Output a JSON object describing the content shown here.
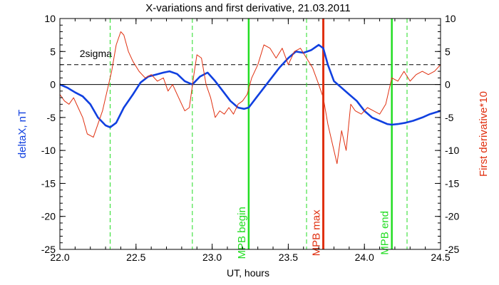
{
  "chart_data": {
    "type": "line",
    "title": "X-variations and first derivative, 21.03.2011",
    "xlabel": "UT, hours",
    "ylabel_left": "deltaX, nT",
    "ylabel_right": "First derivative*10",
    "xlim": [
      22.0,
      24.5
    ],
    "ylim": [
      -25,
      10
    ],
    "x_ticks": [
      "22.0",
      "22.5",
      "23.0",
      "23.5",
      "24.0",
      "24.5"
    ],
    "y_ticks_left": [
      "10",
      "5",
      "0",
      "-5",
      "-10",
      "-15",
      "-20",
      "-25"
    ],
    "y_ticks_right": [
      "10",
      "5",
      "0",
      "-5",
      "-10",
      "-15",
      "-20",
      "-25"
    ],
    "colors": {
      "deltaX": "#1040e0",
      "derivative": "#e03010",
      "mpb_begin_end": "#22dd22",
      "mpb_max": "#e03010",
      "sigma": "#000000"
    },
    "sigma_level": 3,
    "sigma_label": "2sigma",
    "dashed_green_x": [
      22.33,
      22.87,
      23.62,
      24.28
    ],
    "mpb_begin": {
      "x": 23.24,
      "label": "MPB begin"
    },
    "mpb_max": {
      "x": 23.73,
      "label": "MPB max"
    },
    "mpb_end": {
      "x": 24.18,
      "label": "MPB end"
    },
    "series": [
      {
        "name": "deltaX",
        "x": [
          22.0,
          22.05,
          22.1,
          22.15,
          22.2,
          22.25,
          22.3,
          22.33,
          22.37,
          22.42,
          22.48,
          22.53,
          22.58,
          22.63,
          22.68,
          22.72,
          22.77,
          22.82,
          22.87,
          22.92,
          22.97,
          23.02,
          23.07,
          23.12,
          23.17,
          23.21,
          23.24,
          23.29,
          23.34,
          23.39,
          23.44,
          23.5,
          23.55,
          23.6,
          23.65,
          23.7,
          23.73,
          23.76,
          23.8,
          23.85,
          23.9,
          23.95,
          24.0,
          24.05,
          24.1,
          24.15,
          24.18,
          24.22,
          24.27,
          24.32,
          24.38,
          24.43,
          24.5
        ],
        "y": [
          0,
          -0.5,
          -1.2,
          -1.8,
          -3.0,
          -5.0,
          -6.2,
          -6.5,
          -5.8,
          -3.5,
          -1.5,
          0.3,
          1.2,
          1.5,
          1.8,
          2.0,
          1.6,
          0.5,
          0.0,
          1.2,
          1.8,
          0.5,
          -1.0,
          -2.5,
          -3.5,
          -3.7,
          -3.5,
          -2.0,
          -0.5,
          1.0,
          2.5,
          4.0,
          5.0,
          4.8,
          5.2,
          6.0,
          5.5,
          3.0,
          0.5,
          -0.5,
          -1.5,
          -2.5,
          -4.0,
          -5.0,
          -5.5,
          -6.0,
          -6.1,
          -6.0,
          -5.8,
          -5.5,
          -5.0,
          -4.5,
          -4.0
        ]
      },
      {
        "name": "derivative",
        "x": [
          22.0,
          22.03,
          22.06,
          22.09,
          22.12,
          22.15,
          22.18,
          22.22,
          22.25,
          22.28,
          22.31,
          22.34,
          22.37,
          22.4,
          22.42,
          22.45,
          22.48,
          22.52,
          22.56,
          22.6,
          22.64,
          22.68,
          22.71,
          22.74,
          22.78,
          22.82,
          22.85,
          22.88,
          22.9,
          22.93,
          22.96,
          22.99,
          23.02,
          23.05,
          23.08,
          23.11,
          23.14,
          23.17,
          23.2,
          23.23,
          23.26,
          23.3,
          23.34,
          23.38,
          23.42,
          23.46,
          23.5,
          23.54,
          23.58,
          23.62,
          23.66,
          23.7,
          23.73,
          23.76,
          23.79,
          23.82,
          23.85,
          23.88,
          23.91,
          23.94,
          23.98,
          24.02,
          24.06,
          24.1,
          24.14,
          24.18,
          24.22,
          24.26,
          24.3,
          24.34,
          24.38,
          24.42,
          24.46,
          24.5
        ],
        "y": [
          -1.5,
          -2.5,
          -3.0,
          -2.0,
          -3.5,
          -5.0,
          -7.5,
          -8.0,
          -6.0,
          -4.0,
          -1.0,
          2.0,
          6.0,
          8.0,
          7.5,
          5.0,
          3.5,
          2.0,
          1.0,
          1.5,
          0.5,
          1.0,
          -1.0,
          0.0,
          -2.0,
          -4.0,
          -3.5,
          1.5,
          4.5,
          4.0,
          0.0,
          -2.0,
          -5.0,
          -4.0,
          -4.5,
          -3.5,
          -4.5,
          -3.0,
          -2.5,
          -1.5,
          1.0,
          3.0,
          6.0,
          5.5,
          4.0,
          5.5,
          3.0,
          5.0,
          5.5,
          4.0,
          2.5,
          0.0,
          -2.0,
          -6.0,
          -9.0,
          -12.0,
          -7.0,
          -10.0,
          -3.0,
          -4.0,
          -4.5,
          -3.5,
          -4.0,
          -4.5,
          -3.0,
          1.0,
          0.5,
          2.0,
          0.5,
          1.5,
          2.0,
          1.5,
          2.0,
          3.0
        ]
      }
    ]
  }
}
